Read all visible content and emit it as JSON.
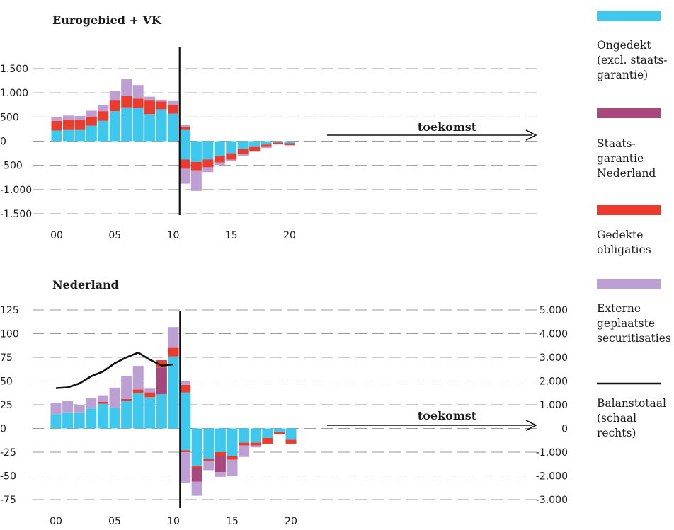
{
  "colors": {
    "ongedekt": "#3ec8ee",
    "staatsgarantie": "#a8477e",
    "gedekt": "#ea3b2d",
    "extern": "#bca0d3",
    "balans": "#111111"
  },
  "legend": [
    {
      "key": "ongedekt",
      "lines": [
        "Ongedekt",
        "(excl. staats-",
        "garantie)"
      ]
    },
    {
      "key": "staatsgarantie",
      "lines": [
        "Staats-",
        "garantie",
        "Nederland"
      ]
    },
    {
      "key": "gedekt",
      "lines": [
        "Gedekte",
        "obligaties"
      ]
    },
    {
      "key": "extern",
      "lines": [
        "Externe",
        "geplaatste",
        "securitisaties"
      ]
    },
    {
      "key": "balans",
      "lines": [
        "Balanstotaal",
        "(schaal",
        "rechts)"
      ]
    }
  ],
  "chart_data": [
    {
      "type": "bar",
      "stacked": true,
      "title": "Eurogebied + VK",
      "x": [
        0,
        1,
        2,
        3,
        4,
        5,
        6,
        7,
        8,
        9,
        10,
        11,
        12,
        13,
        14,
        15,
        16,
        17,
        18,
        19,
        20
      ],
      "xticks": [
        "00",
        "05",
        "10",
        "15",
        "20"
      ],
      "xtick_values": [
        0,
        5,
        10,
        15,
        20
      ],
      "ylim": [
        -1500,
        1500
      ],
      "yticks": [
        "1.500",
        "1.000",
        "500",
        "0",
        "-500",
        "-1.000",
        "-1.500"
      ],
      "ytick_values": [
        1500,
        1000,
        500,
        0,
        -500,
        -1000,
        -1500
      ],
      "divider_x": 11,
      "annotation": "toekomst",
      "series": [
        {
          "key": "ongedekt",
          "positive": [
            220,
            230,
            230,
            320,
            420,
            620,
            700,
            680,
            560,
            660,
            570,
            230,
            0,
            0,
            0,
            0,
            0,
            0,
            0,
            0,
            0
          ],
          "negative": [
            0,
            0,
            0,
            0,
            0,
            0,
            0,
            0,
            0,
            0,
            0,
            -380,
            -430,
            -380,
            -300,
            -250,
            -160,
            -120,
            -70,
            -30,
            -40
          ]
        },
        {
          "key": "gedekt",
          "positive": [
            200,
            220,
            210,
            190,
            200,
            220,
            230,
            200,
            280,
            160,
            180,
            70,
            0,
            0,
            0,
            0,
            0,
            0,
            0,
            0,
            0
          ],
          "negative": [
            0,
            0,
            0,
            0,
            0,
            0,
            0,
            0,
            0,
            0,
            0,
            -190,
            -170,
            -160,
            -140,
            -130,
            -110,
            -80,
            -50,
            -30,
            -40
          ]
        },
        {
          "key": "extern",
          "positive": [
            80,
            80,
            80,
            120,
            130,
            200,
            350,
            280,
            80,
            40,
            80,
            40,
            0,
            0,
            0,
            0,
            0,
            0,
            0,
            0,
            0
          ],
          "negative": [
            0,
            0,
            0,
            0,
            0,
            0,
            0,
            0,
            0,
            0,
            0,
            -310,
            -430,
            -100,
            -50,
            -30,
            -30,
            -20,
            -20,
            -10,
            -10
          ]
        }
      ]
    },
    {
      "type": "bar",
      "stacked": true,
      "title": "Nederland",
      "x": [
        0,
        1,
        2,
        3,
        4,
        5,
        6,
        7,
        8,
        9,
        10,
        11,
        12,
        13,
        14,
        15,
        16,
        17,
        18,
        19,
        20
      ],
      "xticks": [
        "00",
        "05",
        "10",
        "15",
        "20"
      ],
      "xtick_values": [
        0,
        5,
        10,
        15,
        20
      ],
      "ylim": [
        -75,
        125
      ],
      "yticks": [
        "125",
        "100",
        "75",
        "50",
        "25",
        "0",
        "-25",
        "-50",
        "-75"
      ],
      "ytick_values": [
        125,
        100,
        75,
        50,
        25,
        0,
        -25,
        -50,
        -75
      ],
      "y2lim": [
        -3000,
        5000
      ],
      "y2ticks": [
        "5.000",
        "4.000",
        "3.000",
        "2.000",
        "1.000",
        "0",
        "-1.000",
        "-2.000",
        "-3.000"
      ],
      "y2tick_values": [
        5000,
        4000,
        3000,
        2000,
        1000,
        0,
        -1000,
        -2000,
        -3000
      ],
      "divider_x": 11,
      "annotation": "toekomst",
      "series": [
        {
          "key": "ongedekt",
          "positive": [
            15,
            17,
            17,
            21,
            26,
            22,
            29,
            37,
            33,
            36,
            76,
            38,
            0,
            0,
            0,
            0,
            0,
            0,
            0,
            0,
            0
          ],
          "negative": [
            0,
            0,
            0,
            0,
            0,
            0,
            0,
            0,
            0,
            0,
            0,
            -23,
            -40,
            -32,
            -25,
            -29,
            -15,
            -15,
            -10,
            -4,
            -12
          ]
        },
        {
          "key": "gedekt",
          "positive": [
            0,
            0,
            0,
            0,
            2,
            0,
            2,
            4,
            5,
            8,
            9,
            8,
            0,
            0,
            0,
            0,
            0,
            0,
            0,
            0,
            0
          ],
          "negative": [
            0,
            0,
            0,
            0,
            0,
            0,
            0,
            0,
            0,
            0,
            0,
            -2,
            -2,
            -2,
            -4,
            -4,
            -3,
            -3,
            -6,
            -2,
            -4
          ]
        },
        {
          "key": "staatsgarantie",
          "positive": [
            0,
            0,
            0,
            0,
            0,
            0,
            0,
            0,
            0,
            28,
            0,
            0,
            0,
            0,
            0,
            0,
            0,
            0,
            0,
            0,
            0
          ],
          "negative": [
            0,
            0,
            0,
            0,
            0,
            0,
            0,
            0,
            0,
            0,
            0,
            0,
            -14,
            0,
            -17,
            0,
            0,
            0,
            0,
            0,
            0
          ]
        },
        {
          "key": "extern",
          "positive": [
            12,
            12,
            8,
            11,
            7,
            21,
            24,
            25,
            4,
            0,
            22,
            4,
            0,
            0,
            0,
            0,
            0,
            0,
            0,
            0,
            0
          ],
          "negative": [
            0,
            0,
            0,
            0,
            0,
            0,
            0,
            0,
            0,
            0,
            0,
            -32,
            -15,
            -10,
            -5,
            -17,
            -12,
            -2,
            0,
            0,
            0
          ]
        }
      ],
      "line": {
        "key": "balans",
        "axis": "right",
        "x": [
          0,
          1,
          2,
          3,
          4,
          5,
          6,
          7,
          8,
          9,
          10
        ],
        "y": [
          1700,
          1730,
          1900,
          2200,
          2400,
          2750,
          3000,
          3200,
          2900,
          2650,
          2700
        ]
      }
    }
  ]
}
